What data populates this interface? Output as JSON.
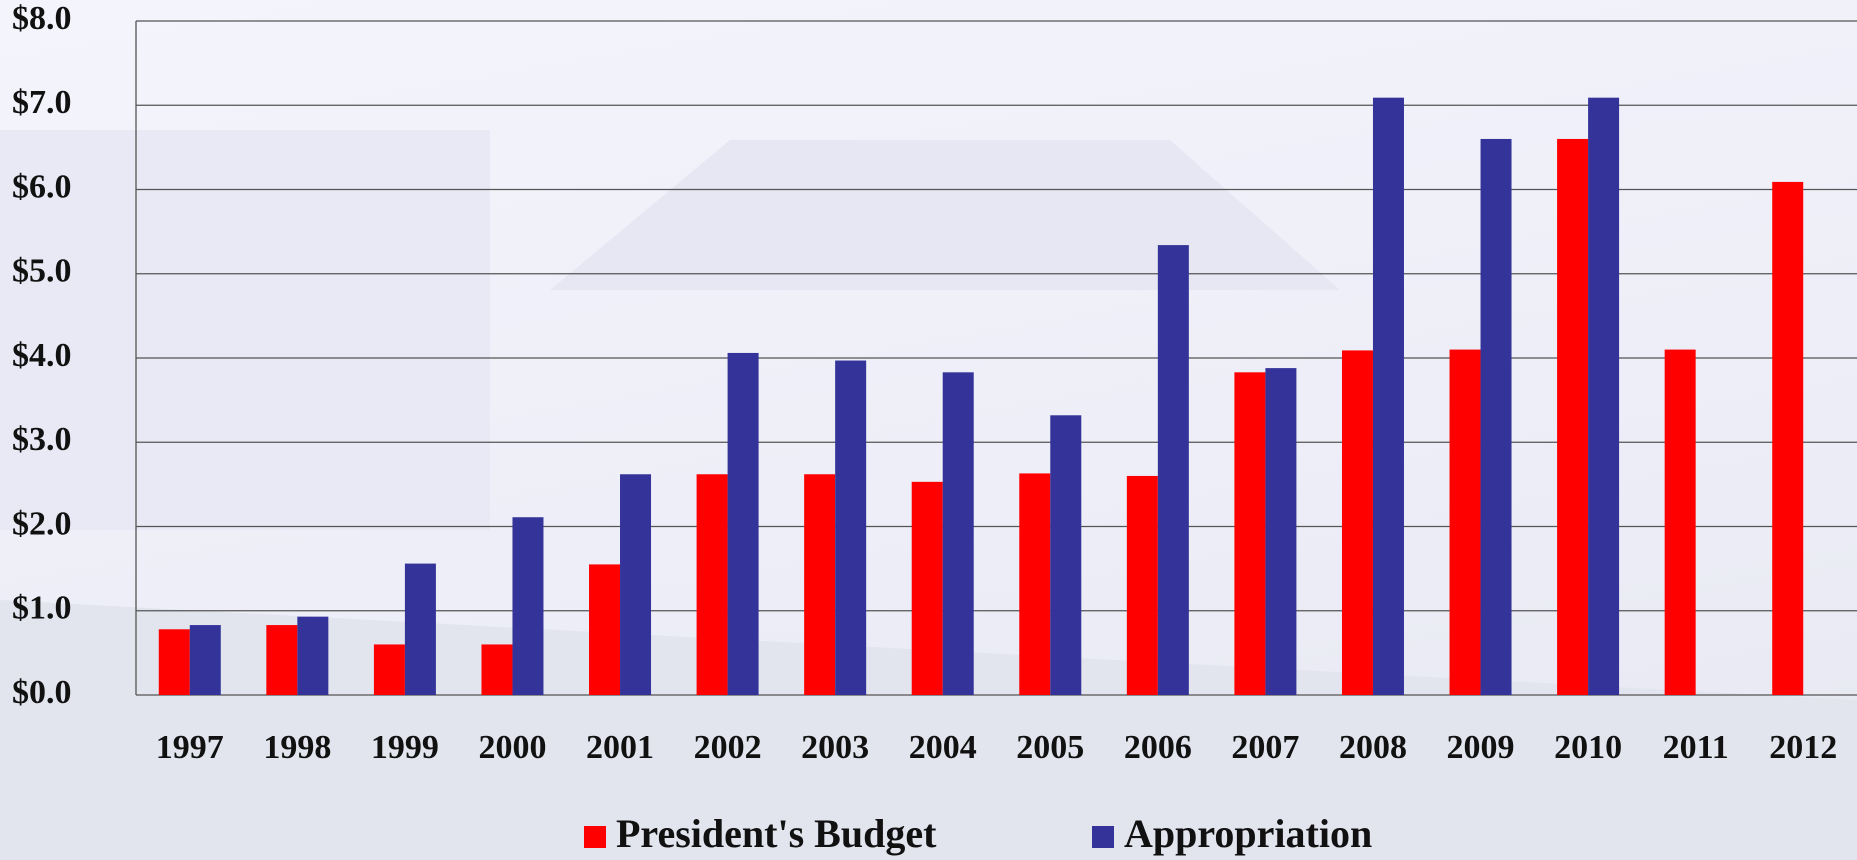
{
  "chart_data": {
    "type": "bar",
    "categories": [
      "1997",
      "1998",
      "1999",
      "2000",
      "2001",
      "2002",
      "2003",
      "2004",
      "2005",
      "2006",
      "2007",
      "2008",
      "2009",
      "2010",
      "2011",
      "2012"
    ],
    "series": [
      {
        "name": "President's Budget",
        "color": "#ff0000",
        "values": [
          0.78,
          0.83,
          0.6,
          0.6,
          1.55,
          2.62,
          2.62,
          2.53,
          2.63,
          2.6,
          3.83,
          4.09,
          4.1,
          6.6,
          4.1,
          6.09
        ]
      },
      {
        "name": "Appropriation",
        "color": "#333399",
        "values": [
          0.83,
          0.93,
          1.56,
          2.11,
          2.62,
          4.06,
          3.97,
          3.83,
          3.32,
          5.34,
          3.88,
          7.09,
          6.6,
          7.09,
          null,
          null
        ]
      }
    ],
    "ylim": [
      0,
      8
    ],
    "yticks": [
      {
        "value": 0,
        "label": "$0.0"
      },
      {
        "value": 1,
        "label": "$1.0"
      },
      {
        "value": 2,
        "label": "$2.0"
      },
      {
        "value": 3,
        "label": "$3.0"
      },
      {
        "value": 4,
        "label": "$4.0"
      },
      {
        "value": 5,
        "label": "$5.0"
      },
      {
        "value": 6,
        "label": "$6.0"
      },
      {
        "value": 7,
        "label": "$7.0"
      },
      {
        "value": 8,
        "label": "$8.0"
      }
    ],
    "grid": true
  }
}
